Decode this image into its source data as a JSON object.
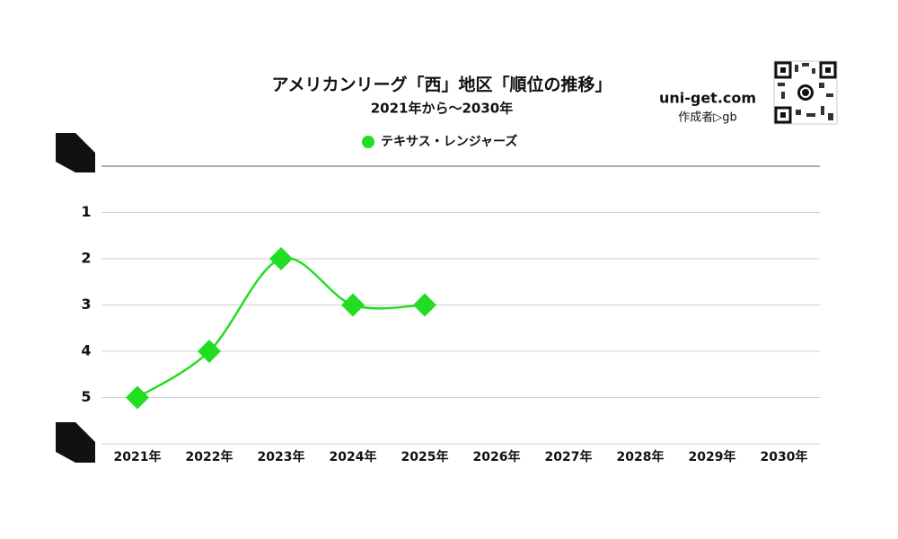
{
  "chart_data": {
    "type": "line",
    "title": "アメリカンリーグ「西」地区「順位の推移」",
    "subtitle": "2021年から～2030年",
    "watermark": "uni-get.com",
    "author": "作成者▷gb",
    "categories": [
      "2021年",
      "2022年",
      "2023年",
      "2024年",
      "2025年",
      "2026年",
      "2027年",
      "2028年",
      "2029年",
      "2030年"
    ],
    "series": [
      {
        "name": "テキサス・レンジャーズ",
        "color": "#22dd22",
        "values": [
          5,
          4,
          2,
          3,
          3,
          null,
          null,
          null,
          null,
          null
        ]
      }
    ],
    "ylim": [
      0,
      6
    ],
    "yticks": [
      1,
      2,
      3,
      4,
      5
    ],
    "y_inverted": true,
    "grid": true,
    "legend": "top"
  }
}
